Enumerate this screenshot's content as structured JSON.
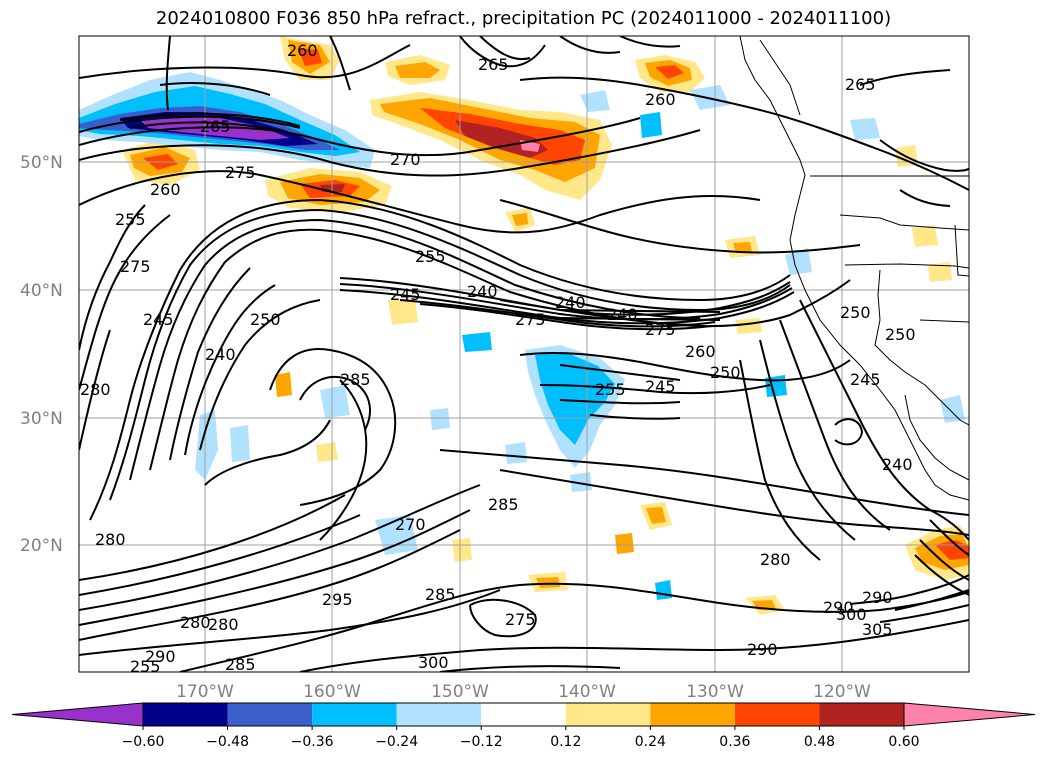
{
  "title": "2024010800 F036 850 hPa refract., precipitation PC (2024011000 - 2024011100)",
  "map": {
    "lat_labels": [
      "50°N",
      "40°N",
      "30°N",
      "20°N"
    ],
    "lon_labels": [
      "170°W",
      "160°W",
      "150°W",
      "140°W",
      "130°W",
      "120°W"
    ],
    "contour_labels": [
      "265",
      "260",
      "265",
      "265",
      "260",
      "275",
      "270",
      "255",
      "260",
      "255",
      "275",
      "245",
      "240",
      "250",
      "245",
      "240",
      "240",
      "240",
      "275",
      "260",
      "250",
      "245",
      "255",
      "250",
      "275",
      "250",
      "245",
      "285",
      "240",
      "280",
      "285",
      "270",
      "280",
      "280",
      "290",
      "300",
      "290",
      "305",
      "290",
      "295",
      "285",
      "280",
      "280",
      "290",
      "285",
      "300",
      "275",
      "255"
    ]
  },
  "colorbar": {
    "ticks": [
      "−0.60",
      "−0.48",
      "−0.36",
      "−0.24",
      "−0.12",
      "0.12",
      "0.24",
      "0.36",
      "0.48",
      "0.60"
    ],
    "colors": [
      "#9932cc",
      "#00008b",
      "#3a5fcd",
      "#00bfff",
      "#b0e2ff",
      "#ffffff",
      "#ffe78a",
      "#ffa500",
      "#ff4500",
      "#b22222",
      "#ff82ab"
    ]
  }
}
